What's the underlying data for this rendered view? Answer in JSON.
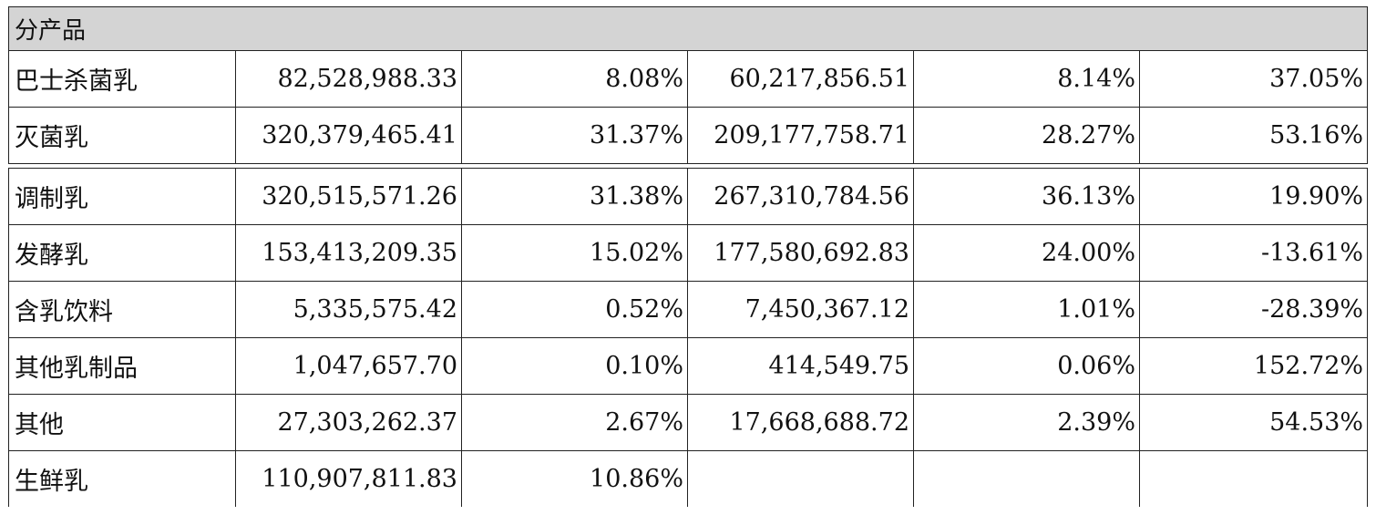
{
  "table": {
    "section_header": "分产品",
    "rows_top": [
      {
        "name": "巴士杀菌乳",
        "c1": "82,528,988.33",
        "c2": "8.08%",
        "c3": "60,217,856.51",
        "c4": "8.14%",
        "c5": "37.05%"
      },
      {
        "name": "灭菌乳",
        "c1": "320,379,465.41",
        "c2": "31.37%",
        "c3": "209,177,758.71",
        "c4": "28.27%",
        "c5": "53.16%"
      }
    ],
    "rows_bottom": [
      {
        "name": "调制乳",
        "c1": "320,515,571.26",
        "c2": "31.38%",
        "c3": "267,310,784.56",
        "c4": "36.13%",
        "c5": "19.90%"
      },
      {
        "name": "发酵乳",
        "c1": "153,413,209.35",
        "c2": "15.02%",
        "c3": "177,580,692.83",
        "c4": "24.00%",
        "c5": "-13.61%"
      },
      {
        "name": "含乳饮料",
        "c1": "5,335,575.42",
        "c2": "0.52%",
        "c3": "7,450,367.12",
        "c4": "1.01%",
        "c5": "-28.39%"
      },
      {
        "name": "其他乳制品",
        "c1": "1,047,657.70",
        "c2": "0.10%",
        "c3": "414,549.75",
        "c4": "0.06%",
        "c5": "152.72%"
      },
      {
        "name": "其他",
        "c1": "27,303,262.37",
        "c2": "2.67%",
        "c3": "17,668,688.72",
        "c4": "2.39%",
        "c5": "54.53%"
      },
      {
        "name": "生鲜乳",
        "c1": "110,907,811.83",
        "c2": "10.86%",
        "c3": "",
        "c4": "",
        "c5": ""
      }
    ]
  }
}
